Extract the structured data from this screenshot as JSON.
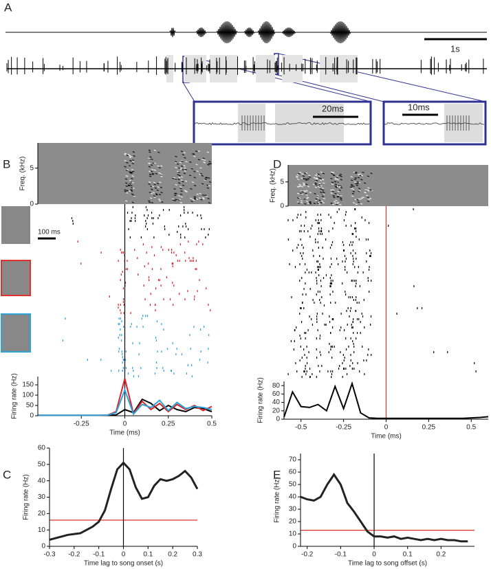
{
  "panel_labels": [
    "A",
    "B",
    "C",
    "D",
    "E"
  ],
  "panel_a": {
    "scale_bar": "1s",
    "inset_1_scale": "20ms",
    "inset_2_scale": "10ms"
  },
  "panel_b": {
    "scale_bar": "100 ms"
  },
  "chart_data": [
    {
      "type": "spectrogram",
      "y_label": "Freq. (kHz)",
      "ylim": [
        0,
        8.5
      ],
      "yticks": [
        0,
        5
      ]
    },
    {
      "type": "line",
      "y_label": "Firing rate (Hz)",
      "x_label": "Time (ms)",
      "xlim": [
        -0.5,
        0.5
      ],
      "xticks": [
        -0.25,
        0,
        0.25,
        0.5
      ],
      "ylim": [
        0,
        190
      ],
      "yticks": [
        0,
        50,
        100,
        150
      ],
      "marker_x": 0,
      "marker_color": "#000000",
      "x": [
        -0.5,
        -0.45,
        -0.4,
        -0.35,
        -0.3,
        -0.25,
        -0.2,
        -0.15,
        -0.1,
        -0.05,
        0,
        0.05,
        0.1,
        0.15,
        0.2,
        0.25,
        0.3,
        0.35,
        0.4,
        0.45,
        0.5
      ],
      "series": [
        {
          "color": "#000000",
          "values": [
            2,
            2,
            2,
            2,
            2,
            2,
            2,
            2,
            2,
            4,
            30,
            15,
            80,
            60,
            25,
            50,
            30,
            20,
            40,
            35,
            20
          ]
        },
        {
          "color": "#d7242a",
          "values": [
            2,
            2,
            2,
            2,
            2,
            2,
            2,
            2,
            3,
            20,
            180,
            10,
            70,
            30,
            60,
            20,
            55,
            30,
            50,
            25,
            45
          ]
        },
        {
          "color": "#2aa3d8",
          "values": [
            2,
            2,
            2,
            2,
            2,
            2,
            2,
            2,
            3,
            15,
            125,
            8,
            55,
            40,
            75,
            25,
            65,
            35,
            45,
            40,
            30
          ]
        }
      ]
    },
    {
      "type": "spectrogram",
      "y_label": "Freq. (kHz)",
      "ylim": [
        0,
        8.5
      ],
      "yticks": [
        0,
        5
      ]
    },
    {
      "type": "line",
      "y_label": "Firing rate (Hz)",
      "x_label": "Time (ms)",
      "xlim": [
        -0.6,
        0.6
      ],
      "xticks": [
        -0.5,
        -0.25,
        0,
        0.25,
        0.5
      ],
      "ylim": [
        0,
        90
      ],
      "yticks": [
        0,
        20,
        40,
        60,
        80
      ],
      "marker_x": 0,
      "marker_color": "#e0312c",
      "x": [
        -0.6,
        -0.55,
        -0.5,
        -0.45,
        -0.4,
        -0.35,
        -0.3,
        -0.25,
        -0.2,
        -0.15,
        -0.1,
        -0.05,
        0,
        0.05,
        0.1,
        0.15,
        0.2,
        0.25,
        0.3,
        0.35,
        0.4,
        0.45,
        0.5,
        0.55,
        0.6
      ],
      "series": [
        {
          "color": "#000000",
          "values": [
            5,
            65,
            30,
            28,
            35,
            20,
            78,
            25,
            85,
            15,
            3,
            2,
            2,
            2,
            2,
            2,
            2,
            2,
            2,
            2,
            2,
            2,
            3,
            4,
            6
          ]
        }
      ]
    },
    {
      "type": "line",
      "y_label": "Firing rate (Hz)",
      "x_label": "Time lag to song onset (s)",
      "xlim": [
        -0.3,
        0.3
      ],
      "xticks": [
        -0.3,
        -0.2,
        -0.1,
        0,
        0.1,
        0.2,
        0.3
      ],
      "ylim": [
        0,
        60
      ],
      "yticks": [
        0,
        10,
        20,
        30,
        40,
        50,
        60
      ],
      "marker_x": 0,
      "marker_color": "#000000",
      "threshold": 16,
      "threshold_color": "#e0312c",
      "x": [
        -0.3,
        -0.275,
        -0.25,
        -0.225,
        -0.2,
        -0.175,
        -0.15,
        -0.125,
        -0.1,
        -0.075,
        -0.05,
        -0.025,
        0,
        0.025,
        0.05,
        0.075,
        0.1,
        0.125,
        0.15,
        0.175,
        0.2,
        0.225,
        0.25,
        0.275,
        0.3
      ],
      "series": [
        {
          "color": "#222222",
          "values": [
            4,
            5,
            6,
            7,
            7.5,
            8,
            10,
            12,
            15,
            22,
            35,
            47,
            51,
            47,
            36,
            29,
            30,
            37,
            41,
            40,
            41,
            43,
            46,
            42,
            35
          ]
        }
      ]
    },
    {
      "type": "line",
      "y_label": "Firing rate (Hz)",
      "x_label": "Time lag to song offset (s)",
      "xlim": [
        -0.22,
        0.3
      ],
      "xticks": [
        -0.2,
        -0.1,
        0,
        0.1,
        0.2
      ],
      "ylim": [
        0,
        75
      ],
      "yticks": [
        0,
        10,
        20,
        30,
        40,
        50,
        60,
        70
      ],
      "marker_x": 0,
      "marker_color": "#000000",
      "threshold": 13,
      "threshold_color": "#e0312c",
      "x": [
        -0.22,
        -0.2,
        -0.18,
        -0.16,
        -0.14,
        -0.12,
        -0.1,
        -0.08,
        -0.06,
        -0.04,
        -0.02,
        0,
        0.02,
        0.04,
        0.06,
        0.08,
        0.1,
        0.12,
        0.14,
        0.16,
        0.18,
        0.2,
        0.22,
        0.24,
        0.26,
        0.28
      ],
      "series": [
        {
          "color": "#222222",
          "values": [
            40,
            38,
            37,
            40,
            50,
            58,
            50,
            35,
            28,
            20,
            12,
            8,
            8,
            7,
            8,
            6,
            7,
            6,
            5,
            6,
            5,
            6,
            5,
            5,
            4,
            4
          ]
        }
      ]
    }
  ]
}
